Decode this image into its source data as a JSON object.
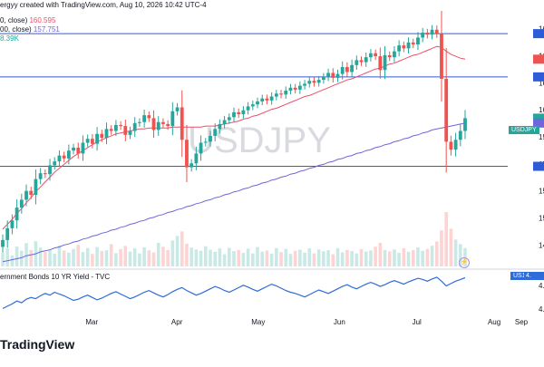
{
  "header": {
    "line1": "ergyy created with TradingView.com, Aug 10, 2026 10:42 UTC-4",
    "ma_fast_label": "0, close)",
    "ma_fast_value": "160.595",
    "ma_slow_label": "00, close)",
    "ma_slow_value": "157.751",
    "volume_value": "8.39K",
    "bond_label": "ernment Bonds 10 YR Yield - TVC"
  },
  "watermark": "USDJPY",
  "logo": "TradingView",
  "symbol_tags": {
    "main": "USDJPY",
    "sub": "US10Y",
    "sub_value": "4."
  },
  "colors": {
    "up": "#26a69a",
    "down": "#ef5350",
    "ma_fast": "#e9506a",
    "ma_slow": "#6d66dd",
    "hline": "#2e5bd8",
    "bond_line": "#2f6bd9",
    "watermark": "#d8dadf"
  },
  "chart_data": [
    {
      "type": "candlestick",
      "symbol": "USDJPY",
      "x_tick_labels": [
        "Mar",
        "Apr",
        "May",
        "Jun",
        "Jul",
        "Aug",
        "Sep"
      ],
      "open": [
        143.3,
        144.0,
        145.2,
        146.0,
        147.3,
        148.1,
        149.0,
        148.6,
        150.2,
        150.8,
        150.7,
        151.6,
        152.0,
        152.6,
        152.3,
        153.1,
        153.4,
        152.8,
        153.9,
        154.3,
        153.8,
        154.8,
        154.4,
        155.3,
        155.1,
        155.7,
        155.6,
        154.7,
        155.1,
        155.9,
        156.0,
        156.7,
        156.4,
        155.2,
        156.0,
        155.8,
        155.6,
        157.1,
        157.5,
        154.2,
        151.4,
        151.8,
        152.8,
        153.9,
        154.0,
        154.6,
        155.3,
        155.8,
        156.2,
        156.5,
        157.0,
        156.8,
        157.2,
        157.6,
        157.8,
        158.1,
        158.4,
        158.2,
        158.6,
        158.9,
        158.8,
        159.2,
        159.5,
        159.3,
        159.7,
        159.9,
        160.2,
        160.0,
        160.3,
        160.6,
        161.0,
        160.5,
        160.9,
        161.6,
        161.1,
        161.8,
        162.3,
        162.1,
        162.6,
        163.0,
        162.7,
        161.3,
        162.8,
        162.6,
        163.2,
        163.8,
        163.5,
        164.1,
        163.9,
        164.6,
        165.1,
        164.9,
        165.4,
        165.0,
        160.4,
        154.0,
        153.2,
        154.2,
        155.1
      ],
      "close": [
        144.0,
        145.2,
        146.0,
        147.3,
        148.1,
        149.0,
        148.6,
        150.2,
        150.8,
        150.7,
        151.6,
        152.0,
        152.6,
        152.3,
        153.1,
        153.4,
        152.8,
        153.9,
        154.3,
        153.8,
        154.8,
        154.4,
        155.3,
        155.1,
        155.7,
        155.6,
        154.7,
        155.1,
        155.9,
        156.0,
        156.7,
        156.4,
        155.2,
        156.0,
        155.8,
        155.6,
        157.1,
        157.5,
        154.2,
        151.4,
        151.8,
        152.8,
        153.9,
        154.0,
        154.6,
        155.3,
        155.8,
        156.2,
        156.5,
        157.0,
        156.8,
        157.2,
        157.6,
        157.8,
        158.1,
        158.4,
        158.2,
        158.6,
        158.9,
        158.8,
        159.2,
        159.5,
        159.3,
        159.7,
        159.9,
        160.2,
        160.0,
        160.3,
        160.6,
        161.0,
        160.5,
        160.9,
        161.6,
        161.1,
        161.8,
        162.3,
        162.1,
        162.6,
        163.0,
        162.7,
        161.3,
        162.8,
        162.6,
        163.2,
        163.8,
        163.5,
        164.1,
        163.9,
        164.6,
        165.1,
        164.9,
        165.4,
        165.0,
        160.4,
        154.0,
        153.2,
        154.2,
        155.1,
        156.4
      ],
      "ma_fast": [
        145.1,
        145.6,
        146.1,
        146.7,
        147.2,
        147.8,
        148.3,
        148.9,
        149.4,
        149.9,
        150.4,
        150.9,
        151.3,
        151.7,
        152.1,
        152.5,
        152.8,
        153.1,
        153.4,
        153.7,
        154.0,
        154.2,
        154.4,
        154.6,
        154.8,
        154.9,
        155.0,
        155.1,
        155.2,
        155.3,
        155.3,
        155.4,
        155.4,
        155.4,
        155.4,
        155.4,
        155.5,
        155.5,
        155.5,
        155.5,
        155.5,
        155.5,
        155.5,
        155.6,
        155.6,
        155.6,
        155.7,
        155.8,
        155.9,
        156.0,
        156.1,
        156.3,
        156.4,
        156.6,
        156.7,
        156.9,
        157.1,
        157.3,
        157.4,
        157.6,
        157.8,
        158.0,
        158.2,
        158.4,
        158.6,
        158.7,
        158.9,
        159.1,
        159.3,
        159.5,
        159.7,
        159.9,
        160.1,
        160.3,
        160.4,
        160.6,
        160.8,
        161.0,
        161.2,
        161.4,
        161.5,
        161.7,
        161.9,
        162.0,
        162.2,
        162.4,
        162.6,
        162.8,
        162.9,
        163.1,
        163.3,
        163.5,
        163.7,
        163.6,
        163.2,
        162.9,
        162.7,
        162.5,
        162.4
      ],
      "ma_slow": [
        141.8,
        141.9,
        142.0,
        142.1,
        142.2,
        142.4,
        142.5,
        142.6,
        142.8,
        142.9,
        143.0,
        143.2,
        143.3,
        143.5,
        143.6,
        143.8,
        143.9,
        144.1,
        144.2,
        144.4,
        144.5,
        144.7,
        144.8,
        145.0,
        145.1,
        145.3,
        145.4,
        145.6,
        145.7,
        145.9,
        146.0,
        146.2,
        146.3,
        146.5,
        146.6,
        146.8,
        146.9,
        147.1,
        147.2,
        147.4,
        147.5,
        147.7,
        147.8,
        148.0,
        148.1,
        148.3,
        148.4,
        148.6,
        148.7,
        148.9,
        149.0,
        149.2,
        149.3,
        149.5,
        149.6,
        149.8,
        149.9,
        150.1,
        150.2,
        150.4,
        150.5,
        150.7,
        150.8,
        151.0,
        151.1,
        151.3,
        151.4,
        151.6,
        151.7,
        151.9,
        152.0,
        152.2,
        152.3,
        152.5,
        152.6,
        152.8,
        152.9,
        153.1,
        153.2,
        153.4,
        153.5,
        153.7,
        153.8,
        154.0,
        154.1,
        154.3,
        154.4,
        154.6,
        154.7,
        154.9,
        155.0,
        155.2,
        155.3,
        155.4,
        155.5,
        155.6,
        155.7,
        155.8,
        155.9
      ],
      "volume": [
        5.2,
        6.8,
        4.1,
        7.5,
        5.9,
        8.8,
        6.2,
        9.5,
        7.1,
        5.5,
        6.3,
        4.8,
        7.9,
        6.0,
        5.2,
        6.6,
        8.1,
        5.4,
        6.9,
        4.7,
        7.3,
        5.8,
        6.1,
        8.4,
        5.0,
        6.5,
        7.7,
        5.6,
        6.8,
        4.9,
        7.2,
        6.1,
        5.3,
        8.9,
        7.4,
        6.2,
        9.8,
        11.5,
        13.2,
        8.6,
        7.1,
        6.4,
        5.9,
        7.6,
        6.3,
        5.5,
        6.8,
        4.6,
        7.0,
        5.8,
        6.2,
        5.1,
        6.7,
        4.9,
        7.3,
        5.6,
        6.0,
        4.8,
        6.9,
        5.4,
        6.6,
        4.7,
        5.9,
        6.3,
        5.2,
        6.8,
        4.9,
        6.4,
        5.7,
        6.1,
        4.6,
        6.9,
        5.3,
        6.2,
        5.8,
        4.9,
        6.5,
        5.6,
        6.0,
        7.4,
        8.9,
        6.2,
        5.7,
        6.4,
        5.1,
        6.8,
        5.5,
        6.1,
        7.2,
        5.9,
        6.6,
        7.8,
        9.4,
        13.6,
        20.5,
        14.2,
        10.1,
        8.4,
        6.9
      ],
      "horizontal_levels": [
        165.0,
        160.6,
        151.5
      ],
      "ylim": [
        141.5,
        167.5
      ],
      "ytick_labels": [
        "16",
        "16",
        "16",
        "16",
        "15",
        "15",
        "15",
        "15",
        "14"
      ]
    },
    {
      "type": "line",
      "name": "US10Y",
      "values": [
        4.02,
        4.06,
        4.1,
        4.15,
        4.12,
        4.18,
        4.21,
        4.19,
        4.24,
        4.28,
        4.25,
        4.3,
        4.27,
        4.24,
        4.2,
        4.16,
        4.18,
        4.22,
        4.25,
        4.21,
        4.17,
        4.2,
        4.24,
        4.28,
        4.31,
        4.27,
        4.23,
        4.19,
        4.22,
        4.26,
        4.3,
        4.33,
        4.29,
        4.25,
        4.22,
        4.26,
        4.31,
        4.35,
        4.38,
        4.33,
        4.29,
        4.25,
        4.28,
        4.32,
        4.36,
        4.4,
        4.37,
        4.33,
        4.3,
        4.34,
        4.38,
        4.42,
        4.39,
        4.35,
        4.32,
        4.36,
        4.4,
        4.44,
        4.41,
        4.37,
        4.33,
        4.3,
        4.28,
        4.25,
        4.22,
        4.26,
        4.3,
        4.34,
        4.31,
        4.28,
        4.32,
        4.36,
        4.4,
        4.43,
        4.39,
        4.36,
        4.4,
        4.44,
        4.47,
        4.44,
        4.4,
        4.43,
        4.47,
        4.5,
        4.47,
        4.44,
        4.48,
        4.51,
        4.54,
        4.52,
        4.49,
        4.53,
        4.56,
        4.49,
        4.41,
        4.45,
        4.49,
        4.52,
        4.55
      ],
      "ylim": [
        3.95,
        4.62
      ],
      "ytick_labels": [
        "4.",
        "4."
      ]
    }
  ]
}
